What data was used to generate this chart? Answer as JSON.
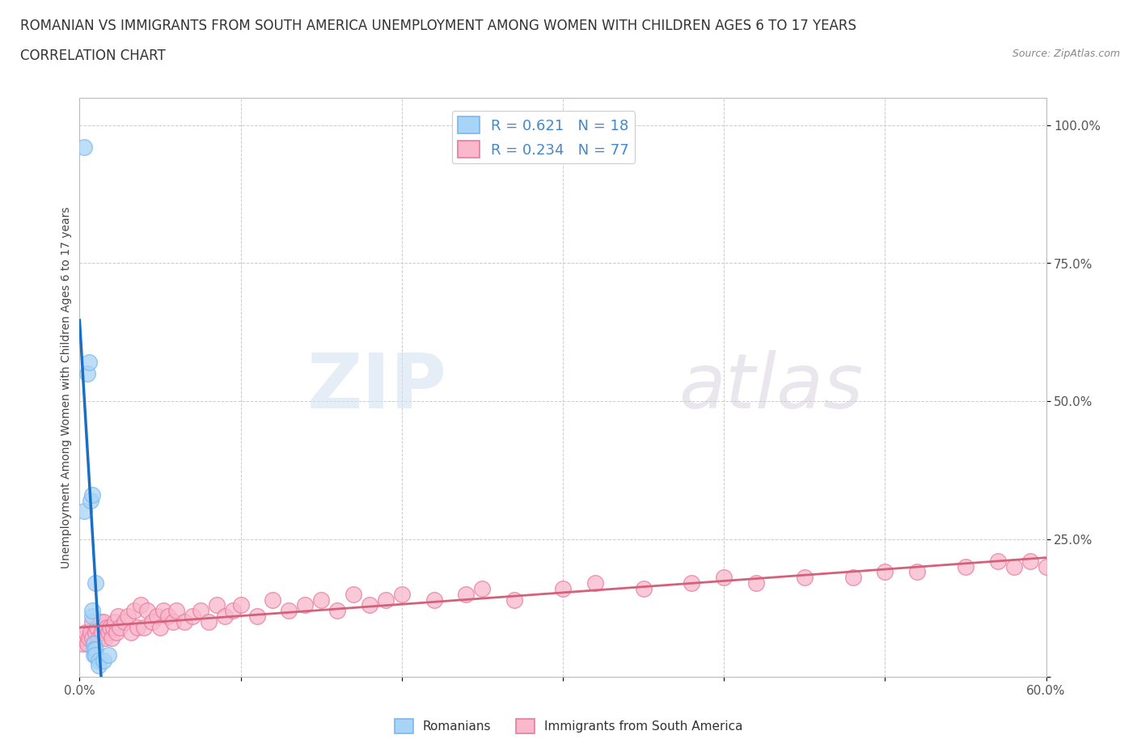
{
  "title_line1": "ROMANIAN VS IMMIGRANTS FROM SOUTH AMERICA UNEMPLOYMENT AMONG WOMEN WITH CHILDREN AGES 6 TO 17 YEARS",
  "title_line2": "CORRELATION CHART",
  "source_text": "Source: ZipAtlas.com",
  "ylabel_text": "Unemployment Among Women with Children Ages 6 to 17 years",
  "watermark_zip": "ZIP",
  "watermark_atlas": "atlas",
  "xlim": [
    0.0,
    0.6
  ],
  "ylim": [
    0.0,
    1.05
  ],
  "xtick_positions": [
    0.0,
    0.1,
    0.2,
    0.3,
    0.4,
    0.5,
    0.6
  ],
  "xtick_labels": [
    "0.0%",
    "",
    "",
    "",
    "",
    "",
    "60.0%"
  ],
  "ytick_positions": [
    0.0,
    0.25,
    0.5,
    0.75,
    1.0
  ],
  "ytick_labels": [
    "",
    "25.0%",
    "50.0%",
    "75.0%",
    "100.0%"
  ],
  "romanian_color": "#a8d4f5",
  "romanian_edge": "#7ab8ee",
  "sa_color": "#f9b8cc",
  "sa_edge": "#e87aa0",
  "trendline_romanian_color": "#1a6fc4",
  "trendline_sa_color": "#d4607a",
  "R_romanian": "0.621",
  "N_romanian": "18",
  "R_sa": "0.234",
  "N_sa": "77",
  "legend_text_color": "#4488cc",
  "legend_label_romanian": "Romanians",
  "legend_label_sa": "Immigrants from South America",
  "background_color": "#ffffff",
  "plot_bg_color": "#ffffff",
  "grid_color": "#cccccc",
  "title_color": "#333333",
  "source_color": "#888888",
  "ylabel_color": "#444444",
  "tick_color": "#555555",
  "romanian_x": [
    0.003,
    0.003,
    0.005,
    0.006,
    0.007,
    0.008,
    0.008,
    0.008,
    0.009,
    0.009,
    0.009,
    0.01,
    0.01,
    0.01,
    0.012,
    0.012,
    0.015,
    0.018
  ],
  "romanian_y": [
    0.96,
    0.3,
    0.55,
    0.57,
    0.32,
    0.33,
    0.11,
    0.12,
    0.06,
    0.05,
    0.04,
    0.17,
    0.05,
    0.04,
    0.03,
    0.02,
    0.03,
    0.04
  ],
  "sa_x": [
    0.002,
    0.003,
    0.004,
    0.005,
    0.006,
    0.007,
    0.008,
    0.008,
    0.009,
    0.01,
    0.011,
    0.012,
    0.013,
    0.014,
    0.015,
    0.016,
    0.017,
    0.018,
    0.019,
    0.02,
    0.021,
    0.022,
    0.023,
    0.024,
    0.025,
    0.028,
    0.03,
    0.032,
    0.034,
    0.036,
    0.038,
    0.04,
    0.042,
    0.045,
    0.048,
    0.05,
    0.052,
    0.055,
    0.058,
    0.06,
    0.065,
    0.07,
    0.075,
    0.08,
    0.085,
    0.09,
    0.095,
    0.1,
    0.11,
    0.12,
    0.13,
    0.14,
    0.15,
    0.16,
    0.17,
    0.18,
    0.19,
    0.2,
    0.22,
    0.24,
    0.25,
    0.27,
    0.3,
    0.32,
    0.35,
    0.38,
    0.4,
    0.42,
    0.45,
    0.48,
    0.5,
    0.52,
    0.55,
    0.57,
    0.58,
    0.59,
    0.6
  ],
  "sa_y": [
    0.06,
    0.07,
    0.08,
    0.06,
    0.07,
    0.08,
    0.07,
    0.1,
    0.06,
    0.08,
    0.09,
    0.07,
    0.1,
    0.08,
    0.1,
    0.07,
    0.09,
    0.08,
    0.09,
    0.07,
    0.09,
    0.1,
    0.08,
    0.11,
    0.09,
    0.1,
    0.11,
    0.08,
    0.12,
    0.09,
    0.13,
    0.09,
    0.12,
    0.1,
    0.11,
    0.09,
    0.12,
    0.11,
    0.1,
    0.12,
    0.1,
    0.11,
    0.12,
    0.1,
    0.13,
    0.11,
    0.12,
    0.13,
    0.11,
    0.14,
    0.12,
    0.13,
    0.14,
    0.12,
    0.15,
    0.13,
    0.14,
    0.15,
    0.14,
    0.15,
    0.16,
    0.14,
    0.16,
    0.17,
    0.16,
    0.17,
    0.18,
    0.17,
    0.18,
    0.18,
    0.19,
    0.19,
    0.2,
    0.21,
    0.2,
    0.21,
    0.2
  ]
}
